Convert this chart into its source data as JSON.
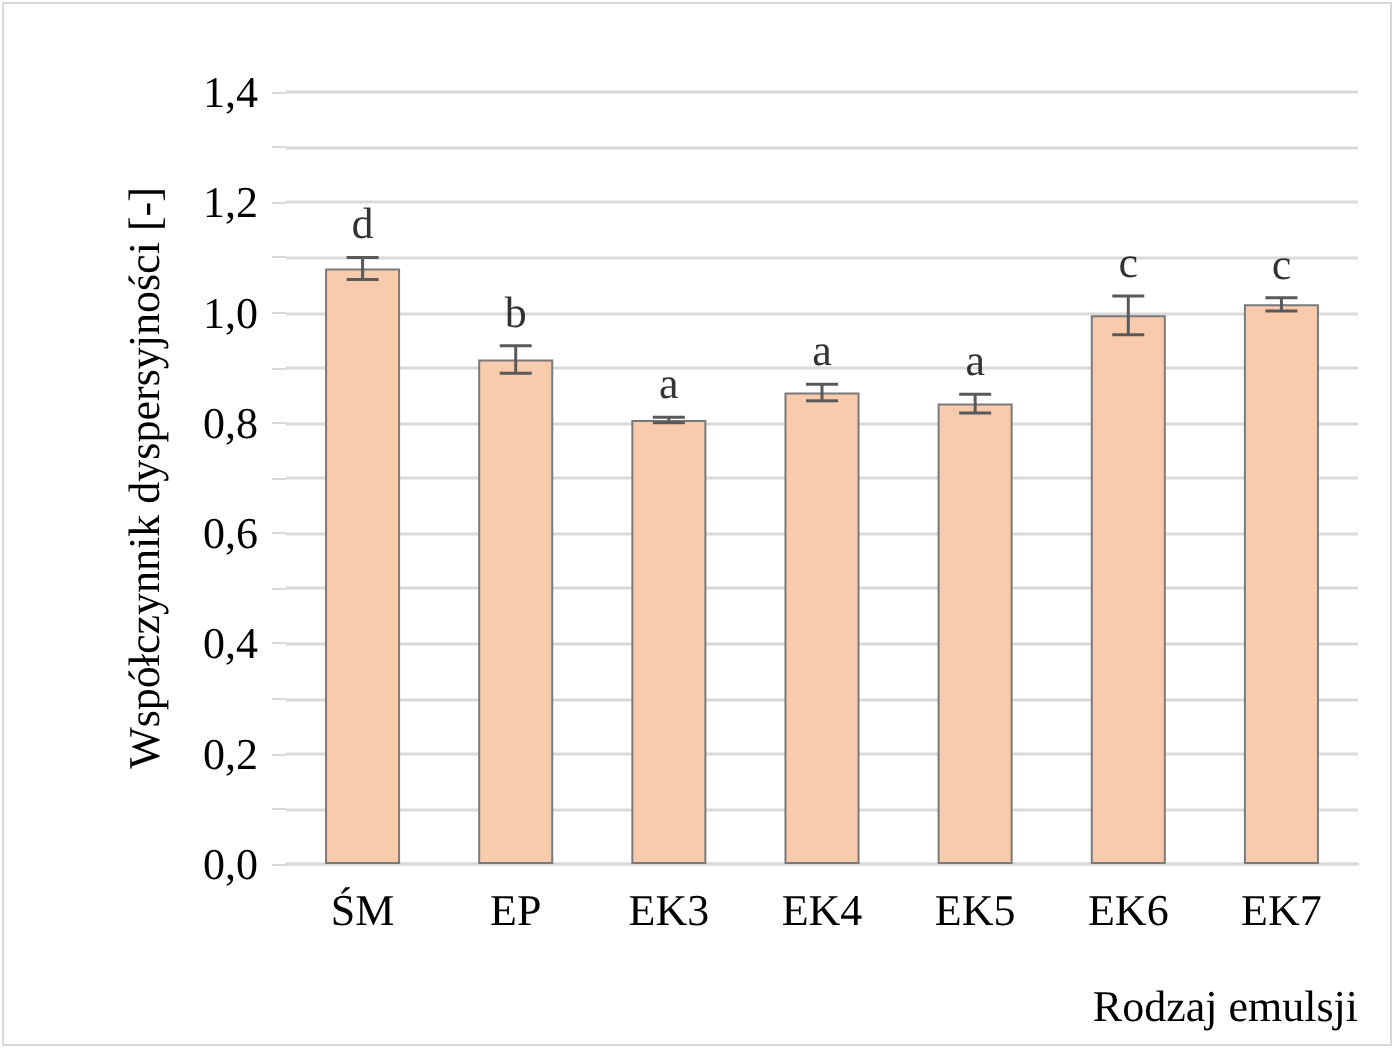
{
  "chart_data": {
    "type": "bar",
    "xlabel": "Rodzaj emulsji",
    "ylabel": "Współczynnik dyspersyjności [-]",
    "categories": [
      "ŚM",
      "EP",
      "EK3",
      "EK4",
      "EK5",
      "EK6",
      "EK7"
    ],
    "values": [
      1.08,
      0.915,
      0.805,
      0.855,
      0.835,
      0.995,
      1.015
    ],
    "errors": [
      0.02,
      0.025,
      0.005,
      0.015,
      0.017,
      0.035,
      0.012
    ],
    "color": "#f8cbad",
    "ylim": [
      0,
      1.4
    ],
    "yticks": [
      {
        "value": 0,
        "label": "0,0"
      },
      {
        "value": 0.1,
        "label": null
      },
      {
        "value": 0.2,
        "label": "0,2"
      },
      {
        "value": 0.3,
        "label": null
      },
      {
        "value": 0.4,
        "label": "0,4"
      },
      {
        "value": 0.5,
        "label": null
      },
      {
        "value": 0.6,
        "label": "0,6"
      },
      {
        "value": 0.7,
        "label": null
      },
      {
        "value": 0.8,
        "label": "0,8"
      },
      {
        "value": 0.9,
        "label": null
      },
      {
        "value": 1.0,
        "label": "1,0"
      },
      {
        "value": 1.1,
        "label": null
      },
      {
        "value": 1.2,
        "label": "1,2"
      },
      {
        "value": 1.3,
        "label": null
      },
      {
        "value": 1.4,
        "label": "1,4"
      }
    ],
    "grid": "y",
    "annotations": [
      {
        "text": "d",
        "x": "ŚM",
        "y": 1.1
      },
      {
        "text": "b",
        "x": "EP",
        "y": 0.94
      },
      {
        "text": "a",
        "x": "EK3",
        "y": 0.81
      },
      {
        "text": "a",
        "x": "EK4",
        "y": 0.87
      },
      {
        "text": "a",
        "x": "EK5",
        "y": 0.852
      },
      {
        "text": "c",
        "x": "EK6",
        "y": 1.03
      },
      {
        "text": "c",
        "x": "EK7",
        "y": 1.027
      }
    ]
  }
}
